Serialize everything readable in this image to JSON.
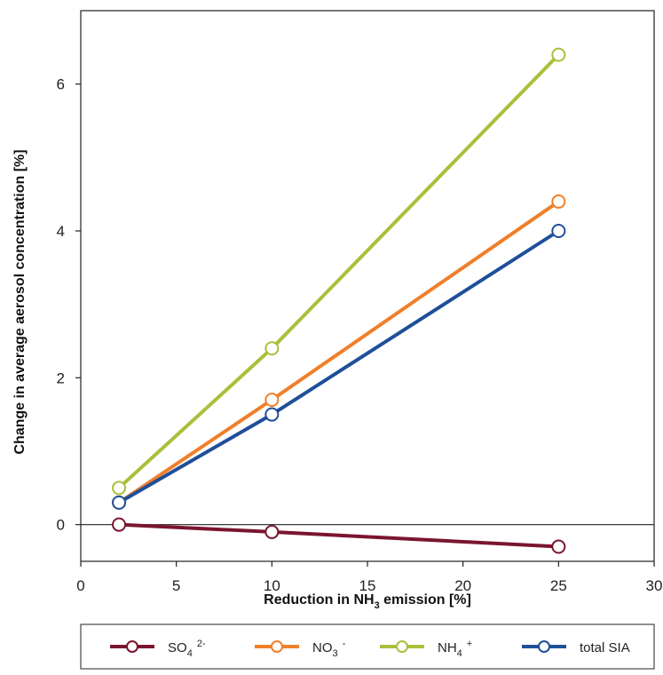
{
  "chart_data": {
    "type": "line",
    "xlabel": {
      "prefix": "Reduction in NH",
      "sub": "3",
      "suffix": " emission [%]"
    },
    "ylabel": "Change in average aerosol concentration [%]",
    "xlim": [
      0,
      30
    ],
    "ylim": [
      -0.5,
      7
    ],
    "xticks": [
      0,
      5,
      10,
      15,
      20,
      25,
      30
    ],
    "yticks": [
      0,
      2,
      4,
      6
    ],
    "zero_line": true,
    "legend_position": "bottom",
    "x": [
      2,
      10,
      25
    ],
    "series": [
      {
        "name": "SO",
        "sub": "4",
        "sup": "2-",
        "color": "#7a1530",
        "values": [
          0.0,
          -0.1,
          -0.3
        ]
      },
      {
        "name": "NO",
        "sub": "3",
        "sup": "-",
        "color": "#f07f2a",
        "values": [
          0.3,
          1.7,
          4.4
        ]
      },
      {
        "name": "NH",
        "sub": "4",
        "sup": "+",
        "color": "#a9c03a",
        "values": [
          0.5,
          2.4,
          6.4
        ]
      },
      {
        "name": "total SIA",
        "sub": "",
        "sup": "",
        "color": "#1f4f9a",
        "values": [
          0.3,
          1.5,
          4.0
        ]
      }
    ]
  }
}
